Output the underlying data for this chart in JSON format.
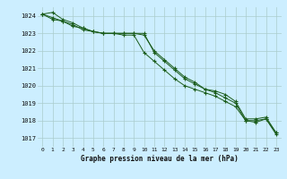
{
  "title": "Graphe pression niveau de la mer (hPa)",
  "background_color": "#cceeff",
  "grid_color": "#aacccc",
  "line_color": "#1a5c1a",
  "x_labels": [
    "0",
    "1",
    "2",
    "3",
    "4",
    "5",
    "6",
    "7",
    "8",
    "9",
    "10",
    "11",
    "12",
    "13",
    "14",
    "15",
    "16",
    "17",
    "18",
    "19",
    "20",
    "21",
    "22",
    "23"
  ],
  "ylim": [
    1016.5,
    1024.5
  ],
  "yticks": [
    1017,
    1018,
    1019,
    1020,
    1021,
    1022,
    1023,
    1024
  ],
  "series1": [
    1024.1,
    1024.2,
    1023.8,
    1023.6,
    1023.3,
    1023.1,
    1023.0,
    1023.0,
    1023.0,
    1023.0,
    1022.9,
    1022.0,
    1021.5,
    1021.0,
    1020.5,
    1020.2,
    1019.8,
    1019.7,
    1019.5,
    1019.1,
    1018.1,
    1018.1,
    1018.2,
    1017.3
  ],
  "series2": [
    1024.1,
    1023.8,
    1023.7,
    1023.4,
    1023.3,
    1023.1,
    1023.0,
    1023.0,
    1023.0,
    1023.0,
    1023.0,
    1021.9,
    1021.4,
    1020.9,
    1020.4,
    1020.1,
    1019.8,
    1019.6,
    1019.3,
    1019.0,
    1018.0,
    1018.0,
    1018.1,
    1017.2
  ],
  "series3": [
    1024.1,
    1023.9,
    1023.7,
    1023.5,
    1023.2,
    1023.1,
    1023.0,
    1023.0,
    1022.9,
    1022.9,
    1021.9,
    1021.4,
    1020.9,
    1020.4,
    1020.0,
    1019.8,
    1019.6,
    1019.4,
    1019.1,
    1018.8,
    1018.0,
    1017.9,
    1018.1,
    1017.3
  ],
  "fig_width": 3.2,
  "fig_height": 2.0,
  "dpi": 100
}
